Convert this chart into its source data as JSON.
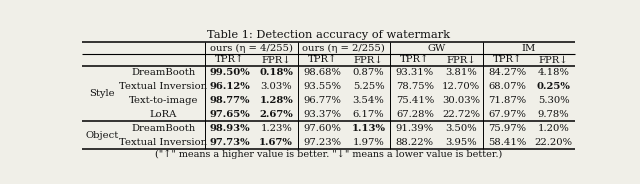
{
  "title": "Table 1: Detection accuracy of watermark",
  "footnote": "(\"↑\" means a higher value is better. \"↓\" means a lower value is better.)",
  "col_groups": [
    {
      "label": "ours (η = 4/255)"
    },
    {
      "label": "ours (η = 2/255)"
    },
    {
      "label": "GW"
    },
    {
      "label": "IM"
    }
  ],
  "sub_headers": [
    "TPR↑",
    "FPR↓",
    "TPR↑",
    "FPR↓",
    "TPR↑",
    "FPR↓",
    "TPR↑",
    "FPR↓"
  ],
  "row_groups": [
    {
      "group_label": "Style",
      "rows": [
        {
          "label": "DreamBooth",
          "vals": [
            "99.50%",
            "0.18%",
            "98.68%",
            "0.87%",
            "93.31%",
            "3.81%",
            "84.27%",
            "4.18%"
          ],
          "bold": [
            true,
            true,
            false,
            false,
            false,
            false,
            false,
            false
          ]
        },
        {
          "label": "Textual Inversion",
          "vals": [
            "96.12%",
            "3.03%",
            "93.55%",
            "5.25%",
            "78.75%",
            "12.70%",
            "68.07%",
            "0.25%"
          ],
          "bold": [
            true,
            false,
            false,
            false,
            false,
            false,
            false,
            true
          ]
        },
        {
          "label": "Text-to-image",
          "vals": [
            "98.77%",
            "1.28%",
            "96.77%",
            "3.54%",
            "75.41%",
            "30.03%",
            "71.87%",
            "5.30%"
          ],
          "bold": [
            true,
            true,
            false,
            false,
            false,
            false,
            false,
            false
          ]
        },
        {
          "label": "LoRA",
          "vals": [
            "97.65%",
            "2.67%",
            "93.37%",
            "6.17%",
            "67.28%",
            "22.72%",
            "67.97%",
            "9.78%"
          ],
          "bold": [
            true,
            true,
            false,
            false,
            false,
            false,
            false,
            false
          ]
        }
      ]
    },
    {
      "group_label": "Object",
      "rows": [
        {
          "label": "DreamBooth",
          "vals": [
            "98.93%",
            "1.23%",
            "97.60%",
            "1.13%",
            "91.39%",
            "3.50%",
            "75.97%",
            "1.20%"
          ],
          "bold": [
            true,
            false,
            false,
            true,
            false,
            false,
            false,
            false
          ]
        },
        {
          "label": "Textual Inversion",
          "vals": [
            "97.73%",
            "1.67%",
            "97.23%",
            "1.97%",
            "88.22%",
            "3.95%",
            "58.41%",
            "22.20%"
          ],
          "bold": [
            true,
            true,
            false,
            false,
            false,
            false,
            false,
            false
          ]
        }
      ]
    }
  ],
  "bg_color": "#f0efe8",
  "text_color": "#111111",
  "font_size": 7.2,
  "title_font_size": 8.2
}
